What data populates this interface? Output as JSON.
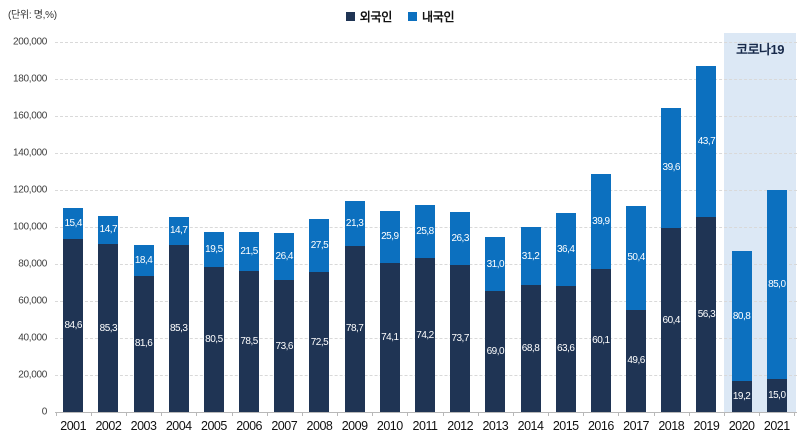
{
  "chart_data": {
    "type": "bar",
    "subtype": "stacked-percentage-bar",
    "unit_label": "(단위: 명,%)",
    "legend_position": "top-center",
    "grid": "horizontal-dashed",
    "ylim": [
      0,
      200000
    ],
    "ytick_step": 20000,
    "ytick_labels": [
      "0",
      "20,000",
      "40,000",
      "60,000",
      "80,000",
      "100,000",
      "120,000",
      "140,000",
      "160,000",
      "180,000",
      "200,000"
    ],
    "categories": [
      "2001",
      "2002",
      "2003",
      "2004",
      "2005",
      "2006",
      "2007",
      "2008",
      "2009",
      "2010",
      "2011",
      "2012",
      "2013",
      "2014",
      "2015",
      "2016",
      "2017",
      "2018",
      "2019",
      "2020",
      "2021"
    ],
    "totals": [
      110300,
      106200,
      90300,
      105600,
      97300,
      97400,
      96700,
      104300,
      114300,
      108900,
      111900,
      107900,
      94400,
      99900,
      107400,
      128700,
      111500,
      164500,
      187100,
      87000,
      120000
    ],
    "legend": [
      {
        "name": "외국인",
        "color": "#1f3454"
      },
      {
        "name": "내국인",
        "color": "#0c70bf"
      }
    ],
    "series": [
      {
        "name": "외국인",
        "color": "#1f3454",
        "pct": [
          84.6,
          85.3,
          81.6,
          85.3,
          80.5,
          78.5,
          73.6,
          72.5,
          78.7,
          74.1,
          74.2,
          73.7,
          69.0,
          68.8,
          63.6,
          60.1,
          49.6,
          60.4,
          56.3,
          19.2,
          15.0
        ],
        "labels": [
          "84,6",
          "85,3",
          "81,6",
          "85,3",
          "80,5",
          "78,5",
          "73,6",
          "72,5",
          "78,7",
          "74,1",
          "74,2",
          "73,7",
          "69,0",
          "68,8",
          "63,6",
          "60,1",
          "49,6",
          "60,4",
          "56,3",
          "19,2",
          "15,0"
        ]
      },
      {
        "name": "내국인",
        "color": "#0c70bf",
        "pct": [
          15.4,
          14.7,
          18.4,
          14.7,
          19.5,
          21.5,
          26.4,
          27.5,
          21.3,
          25.9,
          25.8,
          26.3,
          31.0,
          31.2,
          36.4,
          39.9,
          50.4,
          39.6,
          43.7,
          80.8,
          85.0
        ],
        "labels": [
          "15,4",
          "14,7",
          "18,4",
          "14,7",
          "19,5",
          "21,5",
          "26,4",
          "27,5",
          "21,3",
          "25,9",
          "25,8",
          "26,3",
          "31,0",
          "31,2",
          "36,4",
          "39,9",
          "50,4",
          "39,6",
          "43,7",
          "80,8",
          "85,0"
        ]
      }
    ],
    "annotation": {
      "label": "코로나19",
      "covers": [
        "2020",
        "2021"
      ],
      "region_color": "#dce8f5",
      "label_color": "#17294a"
    }
  }
}
